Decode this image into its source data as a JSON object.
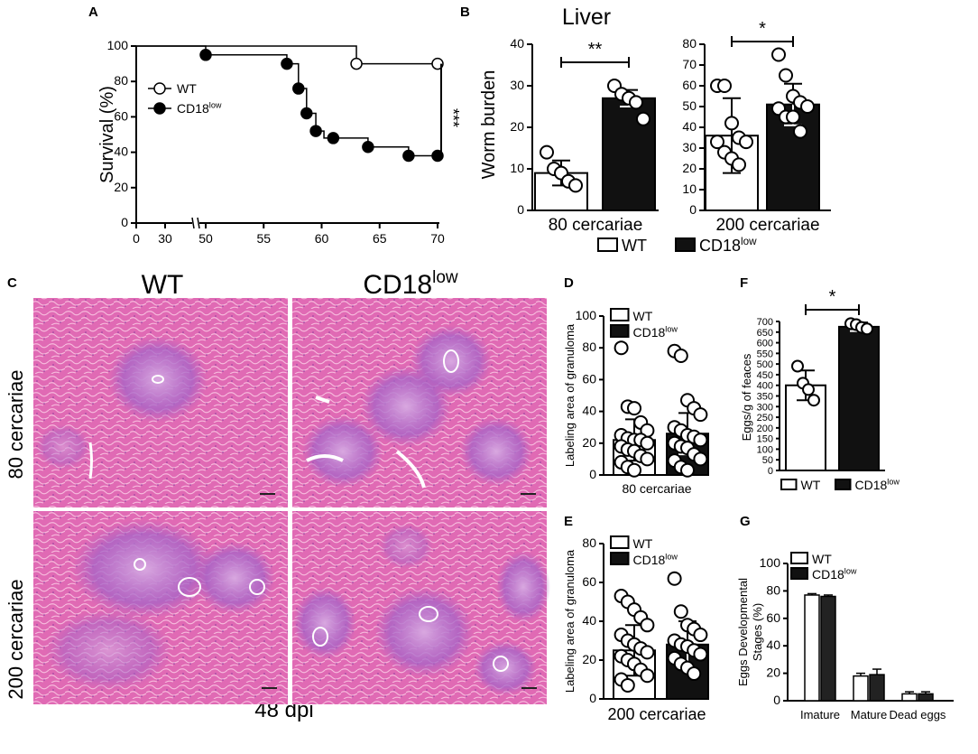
{
  "panel_labels": {
    "a": "A",
    "b": "B",
    "c": "C",
    "d": "D",
    "e": "E",
    "f": "F",
    "g": "G"
  },
  "colors": {
    "wt_fill": "#ffffff",
    "cd18_fill": "#111111",
    "histology": "#e060b0"
  },
  "histology": {
    "col_wt": "WT",
    "col_cd18": "CD18",
    "col_cd18_sup": "low",
    "row_80": "80 cercariae",
    "row_200": "200 cercariae",
    "footer": "48 dpi"
  },
  "chart_data": [
    {
      "id": "A",
      "type": "line",
      "subtype": "kaplan-meier",
      "ylabel": "Survival (%)",
      "xticks": [
        0,
        30,
        50,
        55,
        60,
        65,
        70
      ],
      "yticks": [
        0,
        20,
        40,
        60,
        80,
        100
      ],
      "ylim": [
        0,
        100
      ],
      "axis_break": "between 30 and 50",
      "significance": "***",
      "legend": [
        {
          "name": "WT",
          "marker": "open-circle"
        },
        {
          "name": "CD18",
          "sup": "low",
          "marker": "filled-circle"
        }
      ],
      "series": [
        {
          "name": "WT",
          "x": [
            0,
            63,
            70
          ],
          "y": [
            100,
            90,
            90
          ],
          "markers_x": [
            63,
            70
          ],
          "markers_y": [
            90,
            90
          ]
        },
        {
          "name": "CD18low",
          "x": [
            0,
            50,
            57,
            58,
            58.7,
            59.5,
            60.2,
            61,
            64,
            67.5,
            70
          ],
          "y": [
            100,
            95,
            90,
            76,
            62,
            52,
            48,
            48,
            43,
            38,
            38
          ],
          "markers_x": [
            50,
            57,
            58,
            58.7,
            59.5,
            61,
            64,
            67.5,
            70
          ],
          "markers_y": [
            95,
            90,
            76,
            62,
            52,
            48,
            43,
            38,
            38
          ]
        }
      ]
    },
    {
      "id": "B",
      "type": "bar",
      "title": "Liver",
      "ylabel": "Worm burden",
      "legend": [
        {
          "name": "WT"
        },
        {
          "name": "CD18",
          "sup": "low"
        }
      ],
      "subplots": [
        {
          "xlabel": "80 cercariae",
          "ylim": [
            0,
            40
          ],
          "yticks": [
            0,
            10,
            20,
            30,
            40
          ],
          "significance": "**",
          "bars": [
            {
              "name": "WT",
              "mean": 9,
              "sd": 3,
              "points": [
                14,
                10,
                9,
                7,
                6
              ]
            },
            {
              "name": "CD18low",
              "mean": 27,
              "sd": 2,
              "points": [
                30,
                28,
                27,
                26,
                22
              ]
            }
          ]
        },
        {
          "xlabel": "200 cercariae",
          "ylim": [
            0,
            80
          ],
          "yticks": [
            0,
            10,
            20,
            30,
            40,
            50,
            60,
            70,
            80
          ],
          "significance": "*",
          "bars": [
            {
              "name": "WT",
              "mean": 36,
              "sd": 18,
              "points": [
                60,
                60,
                42,
                35,
                33,
                33,
                28,
                25,
                22
              ]
            },
            {
              "name": "CD18low",
              "mean": 51,
              "sd": 10,
              "points": [
                75,
                65,
                55,
                52,
                50,
                49,
                45,
                45,
                38
              ]
            }
          ]
        }
      ]
    },
    {
      "id": "D",
      "type": "bar",
      "ylabel": "Labeling area of granuloma",
      "xlabel": "80 cercariae",
      "ylim": [
        0,
        100
      ],
      "yticks": [
        0,
        20,
        40,
        60,
        80,
        100
      ],
      "legend": [
        {
          "name": "WT"
        },
        {
          "name": "CD18",
          "sup": "low"
        }
      ],
      "bars": [
        {
          "name": "WT",
          "mean": 22,
          "sd": 13,
          "points": [
            80,
            43,
            42,
            33,
            28,
            25,
            23,
            22,
            22,
            20,
            18,
            16,
            15,
            12,
            10,
            8,
            5,
            3
          ]
        },
        {
          "name": "CD18low",
          "mean": 26,
          "sd": 13,
          "points": [
            78,
            75,
            47,
            42,
            38,
            30,
            28,
            25,
            24,
            22,
            20,
            18,
            17,
            13,
            10,
            9,
            5,
            3
          ]
        }
      ]
    },
    {
      "id": "E",
      "type": "bar",
      "ylabel": "Labeling area of granuloma",
      "xlabel": "200 cercariae",
      "ylim": [
        0,
        80
      ],
      "yticks": [
        0,
        20,
        40,
        60,
        80
      ],
      "legend": [
        {
          "name": "WT"
        },
        {
          "name": "CD18",
          "sup": "low"
        }
      ],
      "bars": [
        {
          "name": "WT",
          "mean": 25,
          "sd": 13,
          "points": [
            53,
            50,
            46,
            42,
            38,
            33,
            30,
            28,
            26,
            24,
            22,
            20,
            18,
            15,
            12,
            10,
            7
          ]
        },
        {
          "name": "CD18low",
          "mean": 28,
          "sd": 12,
          "points": [
            62,
            45,
            38,
            36,
            33,
            30,
            28,
            27,
            25,
            23,
            21,
            18,
            16,
            13
          ]
        }
      ]
    },
    {
      "id": "F",
      "type": "bar",
      "ylabel": "Eggs/g of feaces",
      "ylim": [
        0,
        700
      ],
      "yticks": [
        0,
        50,
        100,
        150,
        200,
        250,
        300,
        350,
        400,
        450,
        500,
        550,
        600,
        650,
        700
      ],
      "significance": "*",
      "legend": [
        {
          "name": "WT"
        },
        {
          "name": "CD18",
          "sup": "low"
        }
      ],
      "bars": [
        {
          "name": "WT",
          "mean": 400,
          "sd": 70,
          "points": [
            490,
            410,
            380,
            330
          ]
        },
        {
          "name": "CD18low",
          "mean": 675,
          "sd": 20,
          "points": [
            690,
            685,
            672,
            665
          ]
        }
      ]
    },
    {
      "id": "G",
      "type": "bar",
      "ylabel": "Eggs Developmental Stages (%)",
      "ylabel_lines": [
        "Eggs Developmental",
        "Stages (%)"
      ],
      "categories": [
        "Imature",
        "Mature",
        "Dead eggs"
      ],
      "ylim": [
        0,
        100
      ],
      "yticks": [
        0,
        20,
        40,
        60,
        80,
        100
      ],
      "legend": [
        {
          "name": "WT"
        },
        {
          "name": "CD18",
          "sup": "low"
        }
      ],
      "series": [
        {
          "name": "WT",
          "values": [
            77,
            18,
            5
          ],
          "sd": [
            1,
            2,
            1.5
          ]
        },
        {
          "name": "CD18low",
          "values": [
            76,
            19,
            5
          ],
          "sd": [
            1,
            4,
            1.5
          ]
        }
      ]
    }
  ]
}
